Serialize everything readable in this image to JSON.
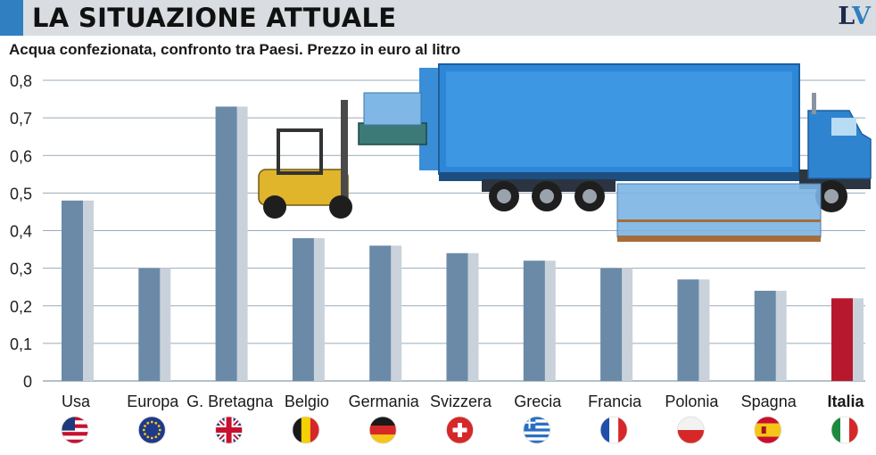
{
  "header": {
    "title": "LA SITUAZIONE ATTUALE",
    "logo": "LV"
  },
  "colors": {
    "bar": "#6a8aa8",
    "bar_shadow": "#c9d2db",
    "highlight": "#b8182d",
    "accent": "#2f7fc1",
    "grid": "#9aabb9"
  },
  "chart_data": {
    "type": "bar",
    "title": "Acqua confezionata, confronto tra Paesi. Prezzo in euro al litro",
    "categories": [
      "Usa",
      "Europa",
      "G. Bretagna",
      "Belgio",
      "Germania",
      "Svizzera",
      "Grecia",
      "Francia",
      "Polonia",
      "Spagna",
      "Italia"
    ],
    "values": [
      0.48,
      0.3,
      0.73,
      0.38,
      0.36,
      0.34,
      0.32,
      0.3,
      0.27,
      0.24,
      0.22
    ],
    "highlight": "Italia",
    "ylim": [
      0,
      0.8
    ],
    "yticks": [
      "0",
      "0,1",
      "0,2",
      "0,3",
      "0,4",
      "0,5",
      "0,6",
      "0,7",
      "0,8"
    ],
    "grid": true,
    "flag_icons": [
      "usa-flag-icon",
      "eu-flag-icon",
      "uk-flag-icon",
      "belgium-flag-icon",
      "germany-flag-icon",
      "switzerland-flag-icon",
      "greece-flag-icon",
      "france-flag-icon",
      "poland-flag-icon",
      "spain-flag-icon",
      "italy-flag-icon"
    ]
  }
}
